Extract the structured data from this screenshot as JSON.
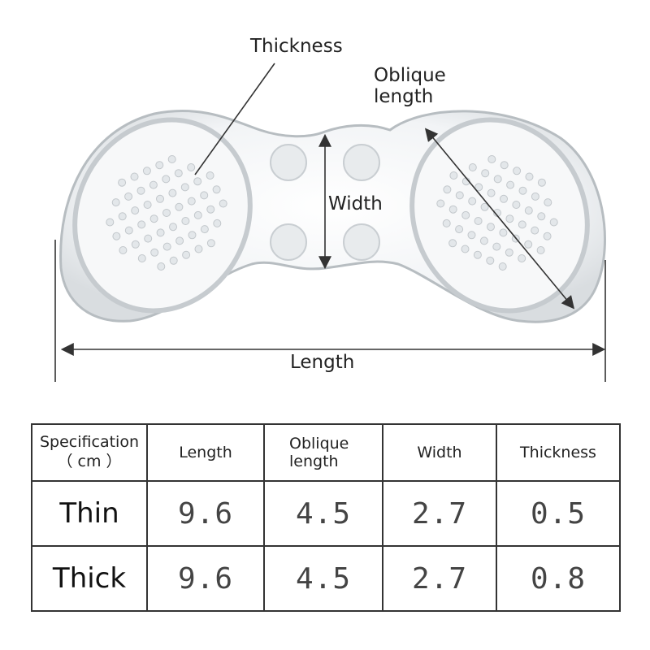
{
  "diagram": {
    "labels": {
      "thickness": "Thickness",
      "oblique_length": "Oblique length",
      "width": "Width",
      "length": "Length"
    },
    "colors": {
      "gel": "#eef1f3",
      "outline": "#9fa6ab",
      "arrow": "#333333"
    }
  },
  "table": {
    "corner_header": "Specification\n（ cm ）",
    "headers": [
      "Length",
      "Oblique length",
      "Width",
      "Thickness"
    ],
    "rows": [
      {
        "label": "Thin",
        "values": [
          "9.6",
          "4.5",
          "2.7",
          "0.5"
        ]
      },
      {
        "label": "Thick",
        "values": [
          "9.6",
          "4.5",
          "2.7",
          "0.8"
        ]
      }
    ]
  }
}
